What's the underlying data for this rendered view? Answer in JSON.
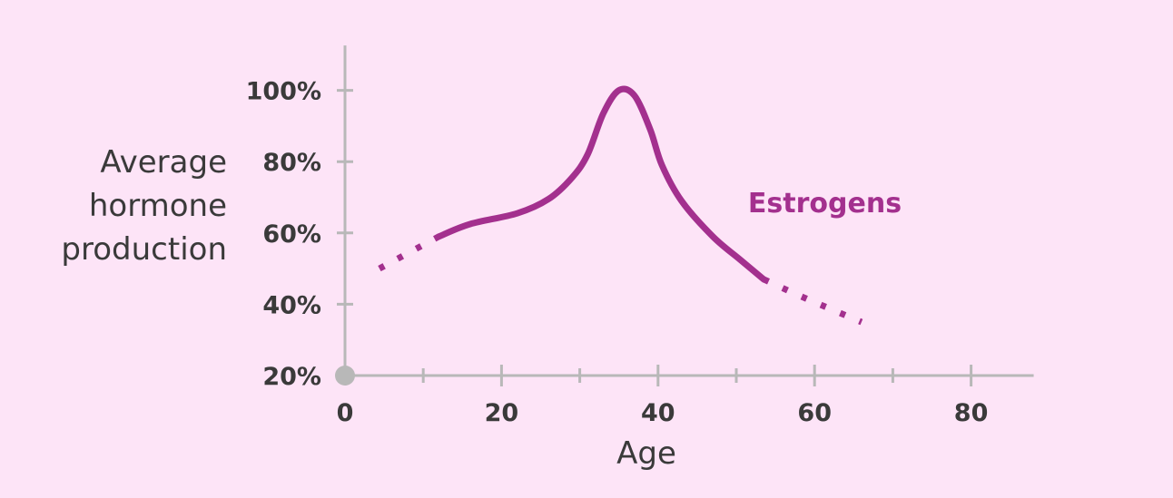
{
  "chart_data": {
    "type": "line",
    "title": "",
    "xlabel": "Age",
    "ylabel": [
      "Average",
      "hormone",
      "production"
    ],
    "xlim": [
      0,
      88
    ],
    "ylim": [
      20,
      108
    ],
    "x_ticks": [
      0,
      20,
      40,
      60,
      80
    ],
    "x_ticks_minor": [
      10,
      30,
      50,
      70
    ],
    "x_tick_labels": [
      "0",
      "20",
      "40",
      "60",
      "80"
    ],
    "y_ticks": [
      20,
      40,
      60,
      80,
      100
    ],
    "y_tick_labels": [
      "20%",
      "40%",
      "60%",
      "80%",
      "100%"
    ],
    "grid": false,
    "series": [
      {
        "name": "Estrogens",
        "color": "#a3308e",
        "dotted_start": [
          [
            4.4,
            50
          ],
          [
            12,
            59
          ]
        ],
        "solid": [
          [
            12,
            59
          ],
          [
            16,
            62.5
          ],
          [
            22,
            65.5
          ],
          [
            26,
            69.5
          ],
          [
            29,
            75.5
          ],
          [
            31,
            82
          ],
          [
            33,
            93.5
          ],
          [
            35,
            100
          ],
          [
            37,
            98.5
          ],
          [
            39,
            89
          ],
          [
            40.5,
            79
          ],
          [
            43,
            69
          ],
          [
            47,
            59
          ],
          [
            50.5,
            52.5
          ],
          [
            53.5,
            47
          ]
        ],
        "dotted_end": [
          [
            53.5,
            47
          ],
          [
            58.5,
            42
          ],
          [
            66,
            35
          ]
        ]
      }
    ],
    "annotations": [
      {
        "text": "Estrogens",
        "color": "#a3308e"
      }
    ]
  },
  "colors": {
    "background": "#fde4f7",
    "axis": "#b8b8b8",
    "text": "#3a3a3a",
    "origin_marker": "#b8b8b8"
  }
}
